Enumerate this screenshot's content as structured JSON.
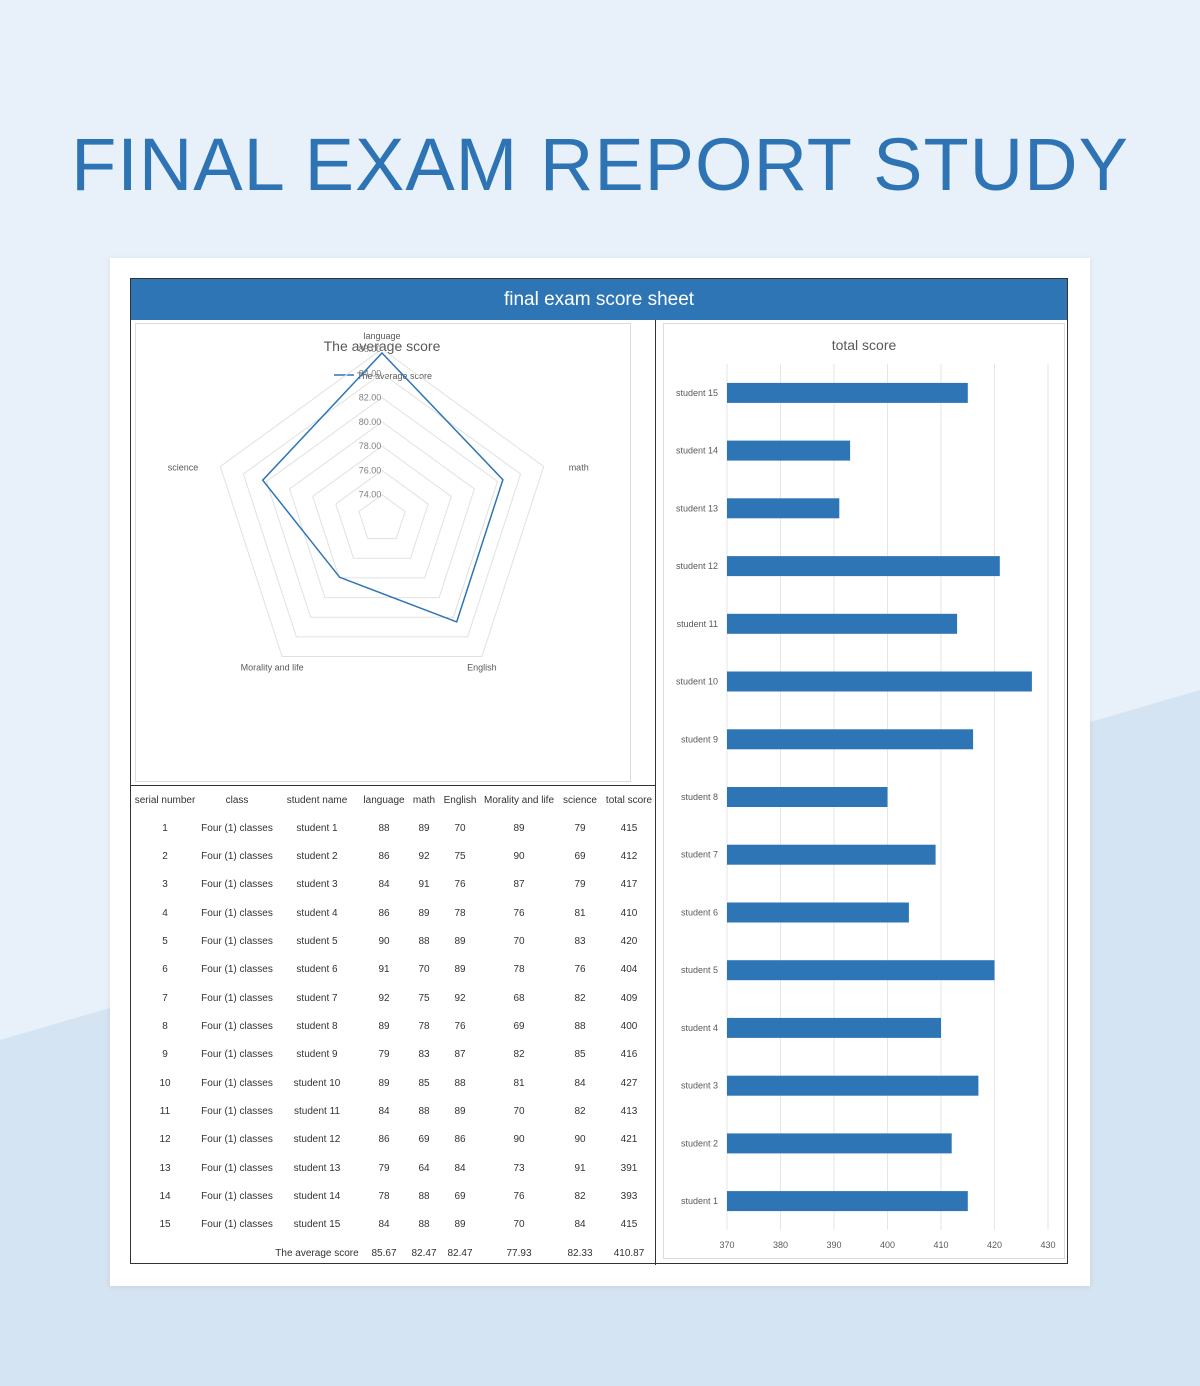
{
  "page": {
    "title": "FINAL EXAM REPORT STUDY",
    "sheet_title": "final exam score sheet"
  },
  "colors": {
    "accent": "#2e75b6",
    "title": "#2e74b5",
    "background": "#e8f1fa",
    "background_shape": "#d5e4f2"
  },
  "radar_chart": {
    "type": "radar",
    "title": "The average score",
    "legend": "The average score",
    "legend_position": "top",
    "axes": [
      "language",
      "math",
      "English",
      "Morality and life",
      "science"
    ],
    "values": [
      85.67,
      82.47,
      82.47,
      77.93,
      82.33
    ],
    "range": [
      72,
      86
    ],
    "ticks": [
      "74.00",
      "76.00",
      "78.00",
      "80.00",
      "82.00",
      "84.00",
      "86.00"
    ]
  },
  "chart_data": {
    "type": "bar",
    "orientation": "horizontal",
    "title": "total score",
    "categories": [
      "student 1",
      "student 2",
      "student 3",
      "student 4",
      "student 5",
      "student 6",
      "student 7",
      "student 8",
      "student 9",
      "student 10",
      "student 11",
      "student 12",
      "student 13",
      "student 14",
      "student 15"
    ],
    "values": [
      415,
      412,
      417,
      410,
      420,
      404,
      409,
      400,
      416,
      427,
      413,
      421,
      391,
      393,
      415
    ],
    "xlim": [
      370,
      430
    ],
    "x_ticks": [
      "370",
      "380",
      "390",
      "400",
      "410",
      "420",
      "430"
    ],
    "grid": true
  },
  "table": {
    "headers": [
      "serial number",
      "class",
      "student name",
      "language",
      "math",
      "English",
      "Morality and life",
      "science",
      "total score"
    ],
    "rows": [
      [
        "1",
        "Four (1) classes",
        "student 1",
        "88",
        "89",
        "70",
        "89",
        "79",
        "415"
      ],
      [
        "2",
        "Four (1) classes",
        "student 2",
        "86",
        "92",
        "75",
        "90",
        "69",
        "412"
      ],
      [
        "3",
        "Four (1) classes",
        "student 3",
        "84",
        "91",
        "76",
        "87",
        "79",
        "417"
      ],
      [
        "4",
        "Four (1) classes",
        "student 4",
        "86",
        "89",
        "78",
        "76",
        "81",
        "410"
      ],
      [
        "5",
        "Four (1) classes",
        "student 5",
        "90",
        "88",
        "89",
        "70",
        "83",
        "420"
      ],
      [
        "6",
        "Four (1) classes",
        "student 6",
        "91",
        "70",
        "89",
        "78",
        "76",
        "404"
      ],
      [
        "7",
        "Four (1) classes",
        "student 7",
        "92",
        "75",
        "92",
        "68",
        "82",
        "409"
      ],
      [
        "8",
        "Four (1) classes",
        "student 8",
        "89",
        "78",
        "76",
        "69",
        "88",
        "400"
      ],
      [
        "9",
        "Four (1) classes",
        "student 9",
        "79",
        "83",
        "87",
        "82",
        "85",
        "416"
      ],
      [
        "10",
        "Four (1) classes",
        "student 10",
        "89",
        "85",
        "88",
        "81",
        "84",
        "427"
      ],
      [
        "11",
        "Four (1) classes",
        "student 11",
        "84",
        "88",
        "89",
        "70",
        "82",
        "413"
      ],
      [
        "12",
        "Four (1) classes",
        "student 12",
        "86",
        "69",
        "86",
        "90",
        "90",
        "421"
      ],
      [
        "13",
        "Four (1) classes",
        "student 13",
        "79",
        "64",
        "84",
        "73",
        "91",
        "391"
      ],
      [
        "14",
        "Four (1) classes",
        "student 14",
        "78",
        "88",
        "69",
        "76",
        "82",
        "393"
      ],
      [
        "15",
        "Four (1) classes",
        "student 15",
        "84",
        "88",
        "89",
        "70",
        "84",
        "415"
      ]
    ],
    "average_label": "The average score",
    "averages": [
      "85.67",
      "82.47",
      "82.47",
      "77.93",
      "82.33",
      "410.87"
    ]
  }
}
